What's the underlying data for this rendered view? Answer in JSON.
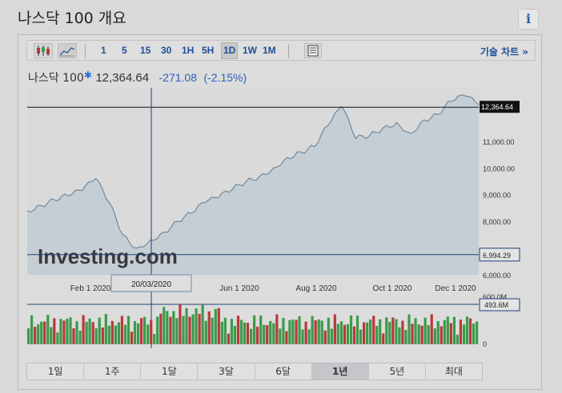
{
  "page": {
    "title": "나스닥 100 개요",
    "info_label": "i"
  },
  "toolbar": {
    "intervals": [
      {
        "label": "1"
      },
      {
        "label": "5"
      },
      {
        "label": "15"
      },
      {
        "label": "30"
      },
      {
        "label": "1H"
      },
      {
        "label": "5H"
      },
      {
        "label": "1D",
        "active": true
      },
      {
        "label": "1W"
      },
      {
        "label": "1M"
      }
    ],
    "advanced_chart_label": "기술 차트 »",
    "icons": [
      "candlestick-icon",
      "line-chart-icon",
      "calculator-icon"
    ]
  },
  "quote": {
    "name": "나스닥 100",
    "price": "12,364.64",
    "change": "-271.08",
    "change_pct": "(-2.15%)",
    "colors": {
      "change": "#2a5fc0",
      "star": "#2a6fd0"
    }
  },
  "chart_data": {
    "type": "area",
    "x_tick_labels": [
      "Feb 1 2020",
      "Jun 1 2020",
      "Aug 1 2020",
      "Oct 1 2020",
      "Dec 1 2020"
    ],
    "y_tick_labels": [
      "11,000.00",
      "10,000.00",
      "9,000.00",
      "8,000.00",
      "6,000.00"
    ],
    "ylim": [
      6000,
      13000
    ],
    "last_price_label": "12,364.64",
    "crosshair_y_label": "6,994.29",
    "crosshair_x_label": "20/03/2020",
    "watermark": "Investing.com",
    "series": [
      {
        "values": [
          8400,
          8600,
          8800,
          8950,
          9150,
          9600,
          8700,
          7500,
          7000,
          7300,
          7600,
          8000,
          8300,
          8700,
          8900,
          9200,
          9500,
          9700,
          10000,
          10400,
          10600,
          10800,
          11600,
          12300,
          11100,
          11200,
          11500,
          11700,
          11300,
          11800,
          12000,
          12500,
          12700,
          12364.64
        ]
      }
    ],
    "volume": {
      "y_tick_labels": [
        "600.0M",
        "0"
      ],
      "last_volume_label": "493.6M",
      "colors": {
        "up": "#3c9a4a",
        "down": "#b83a3a"
      }
    },
    "colors": {
      "area_fill": "#c5ced4",
      "area_line": "#6e8a9e",
      "crosshair": "#1f3f7a"
    }
  },
  "periods": [
    {
      "label": "1일"
    },
    {
      "label": "1주"
    },
    {
      "label": "1달"
    },
    {
      "label": "3달"
    },
    {
      "label": "6달"
    },
    {
      "label": "1년",
      "active": true
    },
    {
      "label": "5년"
    },
    {
      "label": "최대"
    }
  ]
}
